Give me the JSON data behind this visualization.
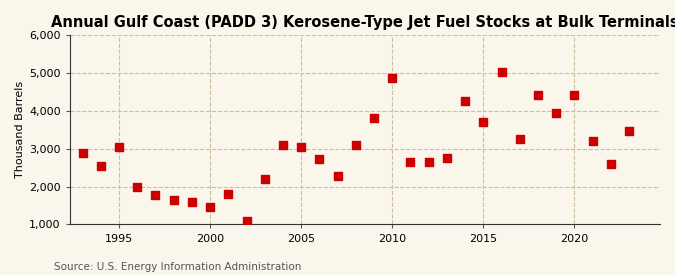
{
  "title": "Annual Gulf Coast (PADD 3) Kerosene-Type Jet Fuel Stocks at Bulk Terminals",
  "ylabel": "Thousand Barrels",
  "source": "Source: U.S. Energy Information Administration",
  "years": [
    1993,
    1994,
    1995,
    1996,
    1997,
    1998,
    1999,
    2000,
    2001,
    2002,
    2003,
    2004,
    2005,
    2006,
    2007,
    2008,
    2009,
    2010,
    2011,
    2012,
    2013,
    2014,
    2015,
    2016,
    2017,
    2018,
    2019,
    2020,
    2021,
    2022,
    2023
  ],
  "values": [
    2900,
    2550,
    3050,
    2000,
    1770,
    1650,
    1600,
    1470,
    1800,
    1100,
    2200,
    3100,
    3050,
    2720,
    2270,
    3100,
    3820,
    4880,
    2650,
    2650,
    2750,
    4260,
    3720,
    5020,
    3250,
    4430,
    3950,
    4430,
    3200,
    2600,
    3480
  ],
  "marker_color": "#cc0000",
  "marker_size": 36,
  "bg_color": "#faf6ec",
  "grid_color": "#c8bfa0",
  "ylim": [
    1000,
    6000
  ],
  "yticks": [
    1000,
    2000,
    3000,
    4000,
    5000,
    6000
  ],
  "xticks": [
    1995,
    2000,
    2005,
    2010,
    2015,
    2020
  ],
  "xlim": [
    1992.3,
    2024.7
  ],
  "title_fontsize": 10.5,
  "label_fontsize": 8,
  "source_fontsize": 7.5
}
